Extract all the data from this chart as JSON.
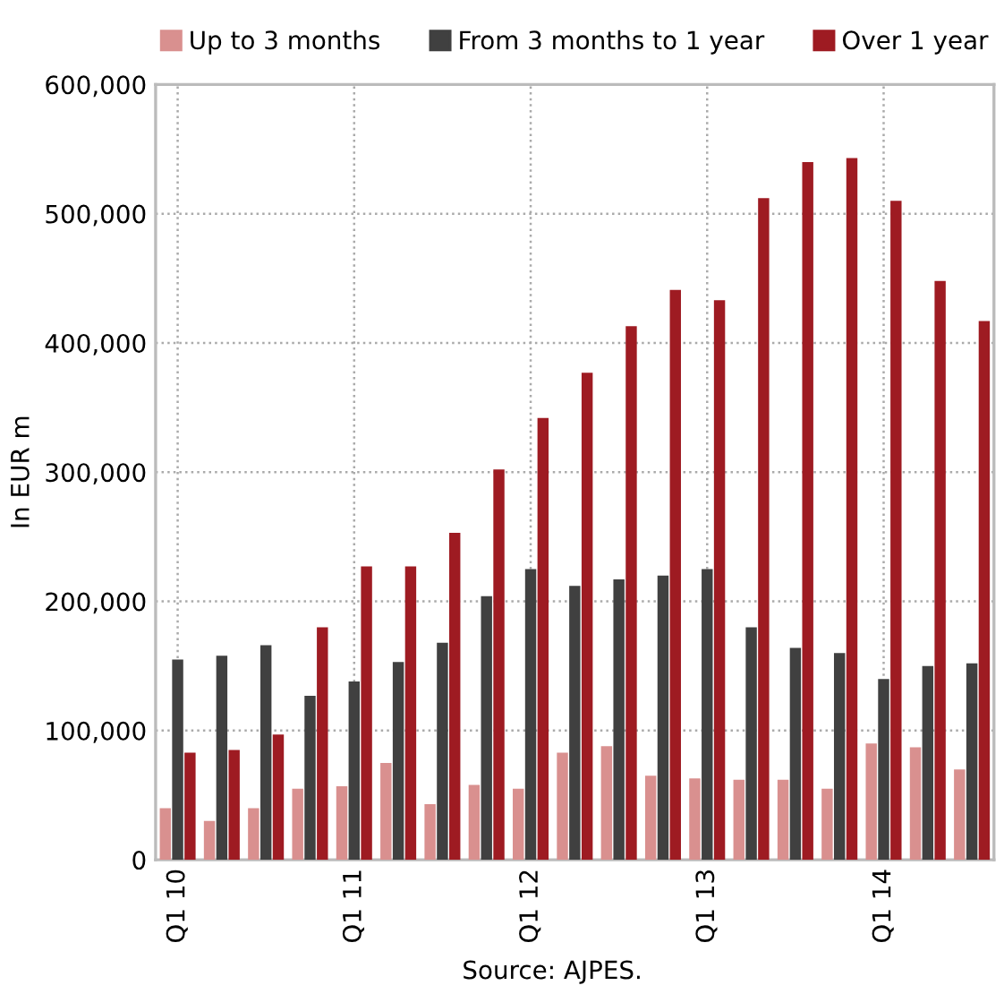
{
  "chart_data": {
    "type": "bar",
    "ylabel": "In EUR m",
    "categories": [
      "Q1 10",
      null,
      null,
      null,
      "Q1 11",
      null,
      null,
      null,
      "Q1 12",
      null,
      null,
      null,
      "Q1 13",
      null,
      null,
      null,
      "Q1 14",
      null,
      null
    ],
    "series": [
      {
        "name": "Up to 3 months",
        "color": "#d9908f",
        "values": [
          40000,
          30000,
          40000,
          55000,
          57000,
          75000,
          43000,
          58000,
          55000,
          83000,
          88000,
          65000,
          63000,
          62000,
          62000,
          55000,
          90000,
          87000,
          70000
        ]
      },
      {
        "name": "From 3 months to 1 year",
        "color": "#404040",
        "values": [
          155000,
          158000,
          166000,
          127000,
          138000,
          153000,
          168000,
          204000,
          225000,
          212000,
          217000,
          220000,
          225000,
          180000,
          164000,
          160000,
          140000,
          150000,
          152000
        ]
      },
      {
        "name": "Over 1 year",
        "color": "#9e1b22",
        "values": [
          83000,
          85000,
          97000,
          180000,
          227000,
          227000,
          253000,
          302000,
          342000,
          377000,
          413000,
          441000,
          433000,
          512000,
          540000,
          543000,
          510000,
          448000,
          417000
        ]
      }
    ],
    "ylim": [
      0,
      600000
    ],
    "yticks": [
      {
        "value": 0,
        "label": "0"
      },
      {
        "value": 100000,
        "label": "100,000"
      },
      {
        "value": 200000,
        "label": "200,000"
      },
      {
        "value": 300000,
        "label": "300,000"
      },
      {
        "value": 400000,
        "label": "400,000"
      },
      {
        "value": 500000,
        "label": "500,000"
      },
      {
        "value": 600000,
        "label": "600,000"
      }
    ],
    "grid": true,
    "legend": "top",
    "annotations": [
      "Source: AJPES."
    ]
  }
}
